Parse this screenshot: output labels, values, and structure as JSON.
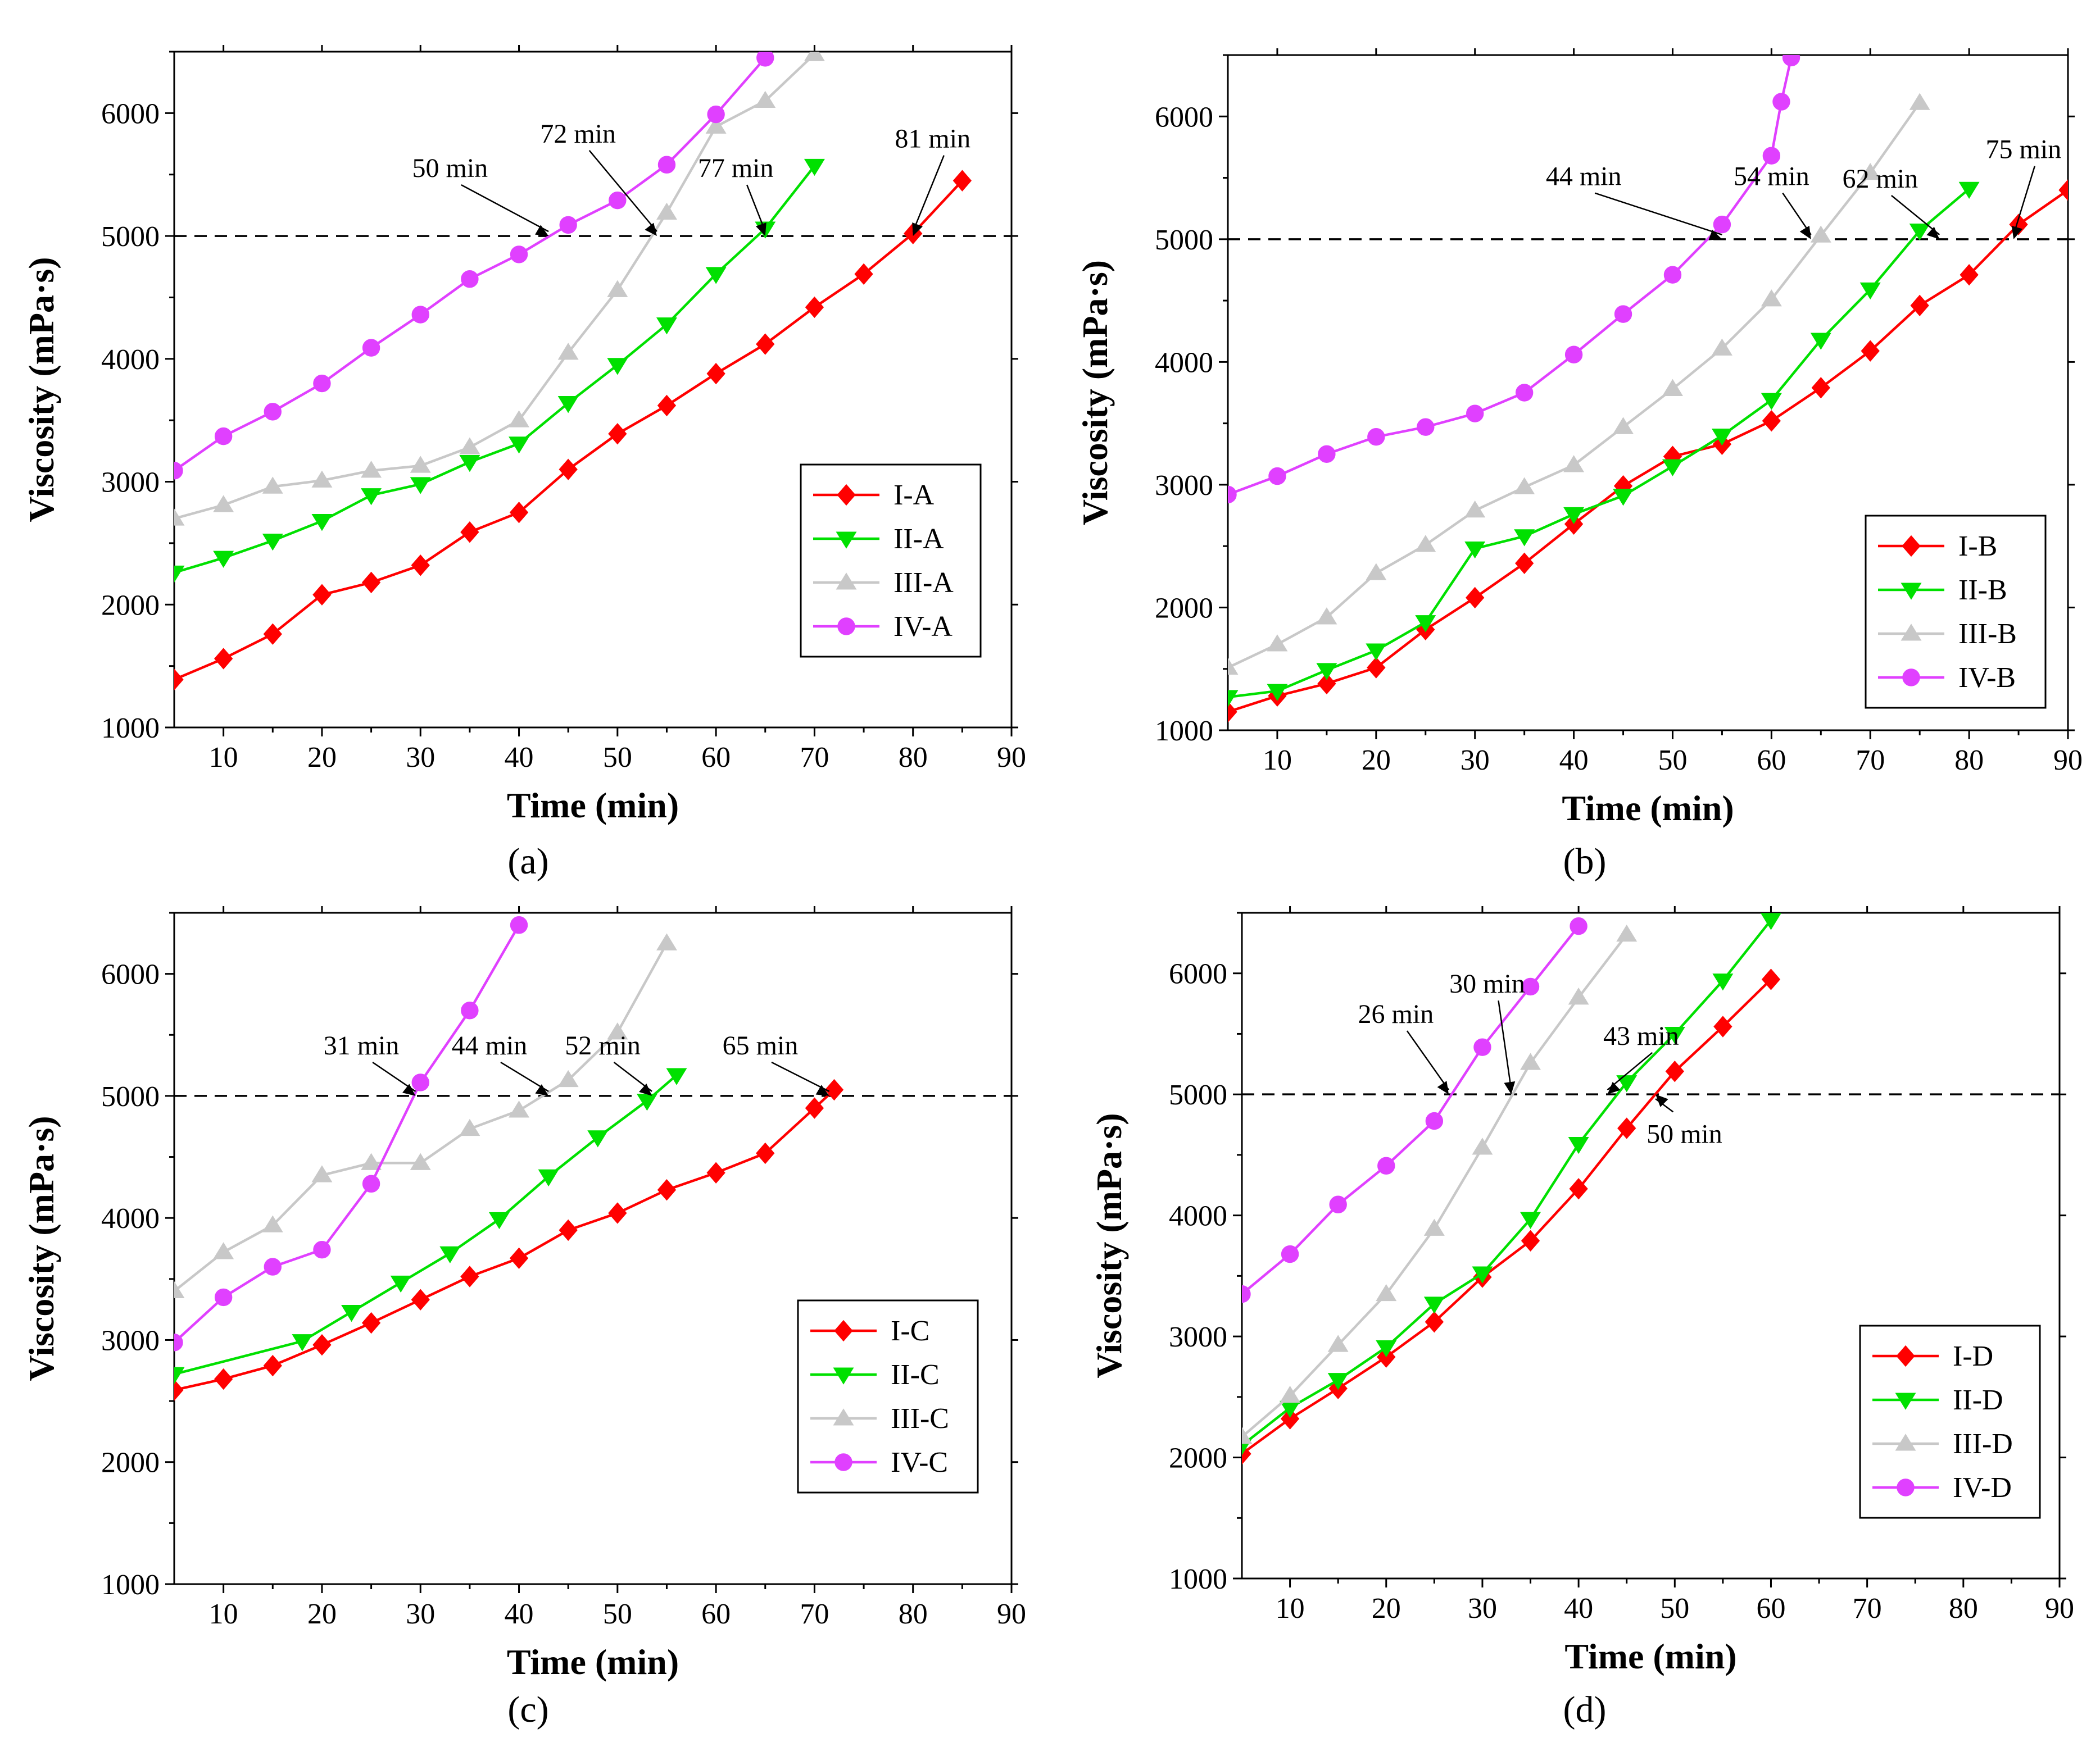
{
  "colors": {
    "I": "#ff0000",
    "II": "#00e000",
    "III": "#c8c8c8",
    "IV": "#e040ff"
  },
  "chart_data": [
    {
      "type": "line",
      "panel": "a",
      "caption": "(a)",
      "xlabel": "Time (min)",
      "ylabel": "Viscosity (mPa·s)",
      "xlim": [
        5,
        90
      ],
      "ylim": [
        1000,
        6500
      ],
      "xticks": [
        10,
        20,
        30,
        40,
        50,
        60,
        70,
        80,
        90
      ],
      "yticks": [
        1000,
        2000,
        3000,
        4000,
        5000,
        6000
      ],
      "threshold": 5000,
      "series": [
        {
          "name": "I-A",
          "group": "I",
          "marker": "diamond",
          "x": [
            5,
            10,
            15,
            20,
            25,
            30,
            35,
            40,
            45,
            50,
            55,
            60,
            65,
            70,
            75,
            80,
            85
          ],
          "y": [
            1390,
            1560,
            1760,
            2080,
            2180,
            2320,
            2590,
            2750,
            3100,
            3390,
            3620,
            3880,
            4120,
            4420,
            4690,
            5020,
            5450
          ]
        },
        {
          "name": "II-A",
          "group": "II",
          "marker": "triangle-down",
          "x": [
            5,
            10,
            15,
            20,
            25,
            30,
            35,
            40,
            45,
            50,
            55,
            60,
            65,
            70
          ],
          "y": [
            2260,
            2380,
            2520,
            2680,
            2890,
            2980,
            3160,
            3310,
            3640,
            3950,
            4280,
            4690,
            5060,
            5570
          ]
        },
        {
          "name": "III-A",
          "group": "III",
          "marker": "triangle-up",
          "x": [
            5,
            10,
            15,
            20,
            25,
            30,
            35,
            40,
            45,
            50,
            55,
            60,
            65,
            70
          ],
          "y": [
            2700,
            2810,
            2960,
            3010,
            3090,
            3130,
            3280,
            3500,
            4050,
            4560,
            5190,
            5890,
            6100,
            6480
          ]
        },
        {
          "name": "IV-A",
          "group": "IV",
          "marker": "circle",
          "x": [
            5,
            10,
            15,
            20,
            25,
            30,
            35,
            40,
            45,
            50,
            55,
            60,
            65
          ],
          "y": [
            3090,
            3370,
            3570,
            3800,
            4090,
            4360,
            4650,
            4850,
            5090,
            5290,
            5580,
            5990,
            6450
          ]
        }
      ],
      "annotations": [
        {
          "text": "50 min",
          "x": 43,
          "tx": 33,
          "ty": 5480
        },
        {
          "text": "72 min",
          "x": 54,
          "tx": 46,
          "ty": 5760
        },
        {
          "text": "77 min",
          "x": 65,
          "tx": 62,
          "ty": 5480
        },
        {
          "text": "81 min",
          "x": 80,
          "tx": 82,
          "ty": 5720
        }
      ],
      "legend": {
        "position": "center-right",
        "entries": [
          "I-A",
          "II-A",
          "III-A",
          "IV-A"
        ]
      }
    },
    {
      "type": "line",
      "panel": "b",
      "caption": "(b)",
      "xlabel": "Time (min)",
      "ylabel": "Viscosity (mPa·s)",
      "xlim": [
        5,
        90
      ],
      "ylim": [
        1000,
        6500
      ],
      "xticks": [
        10,
        20,
        30,
        40,
        50,
        60,
        70,
        80,
        90
      ],
      "yticks": [
        1000,
        2000,
        3000,
        4000,
        5000,
        6000
      ],
      "threshold": 5000,
      "series": [
        {
          "name": "I-B",
          "group": "I",
          "marker": "diamond",
          "x": [
            5,
            10,
            15,
            20,
            25,
            30,
            35,
            40,
            45,
            50,
            55,
            60,
            65,
            70,
            75,
            80,
            85,
            90
          ],
          "y": [
            1150,
            1280,
            1380,
            1510,
            1820,
            2080,
            2360,
            2680,
            2990,
            3230,
            3330,
            3520,
            3790,
            4090,
            4460,
            4710,
            5120,
            5400
          ]
        },
        {
          "name": "II-B",
          "group": "II",
          "marker": "triangle-down",
          "x": [
            5,
            10,
            15,
            20,
            25,
            30,
            35,
            40,
            45,
            50,
            55,
            60,
            65,
            70,
            75,
            80
          ],
          "y": [
            1270,
            1320,
            1490,
            1650,
            1880,
            2480,
            2580,
            2760,
            2910,
            3150,
            3400,
            3690,
            4180,
            4590,
            5070,
            5410
          ]
        },
        {
          "name": "III-B",
          "group": "III",
          "marker": "triangle-up",
          "x": [
            5,
            10,
            15,
            20,
            25,
            30,
            35,
            40,
            45,
            50,
            55,
            60,
            65,
            70,
            75
          ],
          "y": [
            1510,
            1700,
            1920,
            2280,
            2510,
            2790,
            2980,
            3160,
            3470,
            3780,
            4110,
            4510,
            5030,
            5540,
            6110
          ]
        },
        {
          "name": "IV-B",
          "group": "IV",
          "marker": "circle",
          "x": [
            5,
            10,
            15,
            20,
            25,
            30,
            35,
            40,
            45,
            50,
            55,
            60,
            61,
            62
          ],
          "y": [
            2920,
            3070,
            3250,
            3390,
            3470,
            3580,
            3750,
            4060,
            4390,
            4710,
            5120,
            5680,
            6120,
            6480
          ]
        }
      ],
      "annotations": [
        {
          "text": "44 min",
          "x": 55,
          "tx": 41,
          "ty": 5440
        },
        {
          "text": "54 min",
          "x": 64,
          "tx": 60,
          "ty": 5440
        },
        {
          "text": "62 min",
          "x": 77,
          "tx": 71,
          "ty": 5420
        },
        {
          "text": "75 min",
          "x": 84.5,
          "tx": 85.5,
          "ty": 5660
        }
      ],
      "legend": {
        "position": "bottom-right",
        "entries": [
          "I-B",
          "II-B",
          "III-B",
          "IV-B"
        ]
      }
    },
    {
      "type": "line",
      "panel": "c",
      "caption": "(c)",
      "xlabel": "Time (min)",
      "ylabel": "Viscosity (mPa·s)",
      "xlim": [
        5,
        90
      ],
      "ylim": [
        1000,
        6500
      ],
      "xticks": [
        10,
        20,
        30,
        40,
        50,
        60,
        70,
        80,
        90
      ],
      "yticks": [
        1000,
        2000,
        3000,
        4000,
        5000,
        6000
      ],
      "threshold": 5000,
      "series": [
        {
          "name": "I-C",
          "group": "I",
          "marker": "diamond",
          "x": [
            5,
            10,
            15,
            20,
            25,
            30,
            35,
            40,
            45,
            50,
            55,
            60,
            65,
            70,
            72
          ],
          "y": [
            2590,
            2680,
            2790,
            2960,
            3140,
            3330,
            3520,
            3670,
            3900,
            4040,
            4230,
            4370,
            4530,
            4900,
            5050
          ]
        },
        {
          "name": "II-C",
          "group": "II",
          "marker": "triangle-down",
          "x": [
            5,
            18,
            23,
            28,
            33,
            38,
            43,
            48,
            53,
            56
          ],
          "y": [
            2720,
            2990,
            3230,
            3470,
            3710,
            3990,
            4340,
            4660,
            4960,
            5170
          ]
        },
        {
          "name": "III-C",
          "group": "III",
          "marker": "triangle-up",
          "x": [
            5,
            10,
            15,
            20,
            25,
            30,
            35,
            40,
            45,
            50,
            55
          ],
          "y": [
            3400,
            3720,
            3940,
            4350,
            4450,
            4450,
            4730,
            4880,
            5130,
            5520,
            6250
          ]
        },
        {
          "name": "IV-C",
          "group": "IV",
          "marker": "circle",
          "x": [
            5,
            10,
            15,
            20,
            25,
            30,
            35,
            40
          ],
          "y": [
            2980,
            3350,
            3600,
            3740,
            4280,
            5110,
            5700,
            6400
          ]
        }
      ],
      "annotations": [
        {
          "text": "31 min",
          "x": 29.5,
          "tx": 24,
          "ty": 5340
        },
        {
          "text": "44 min",
          "x": 43,
          "tx": 37,
          "ty": 5340
        },
        {
          "text": "52 min",
          "x": 53.5,
          "tx": 48.5,
          "ty": 5340
        },
        {
          "text": "65 min",
          "x": 71.5,
          "tx": 64.5,
          "ty": 5340
        }
      ],
      "legend": {
        "position": "bottom-right",
        "entries": [
          "I-C",
          "II-C",
          "III-C",
          "IV-C"
        ]
      }
    },
    {
      "type": "line",
      "panel": "d",
      "caption": "(d)",
      "xlabel": "Time (min)",
      "ylabel": "Viscosity (mPa·s)",
      "xlim": [
        5,
        90
      ],
      "ylim": [
        1000,
        6500
      ],
      "xticks": [
        10,
        20,
        30,
        40,
        50,
        60,
        70,
        80,
        90
      ],
      "yticks": [
        1000,
        2000,
        3000,
        4000,
        5000,
        6000
      ],
      "threshold": 5000,
      "series": [
        {
          "name": "I-D",
          "group": "I",
          "marker": "diamond",
          "x": [
            5,
            10,
            15,
            20,
            25,
            30,
            35,
            40,
            45,
            50,
            55,
            60
          ],
          "y": [
            2030,
            2320,
            2570,
            2830,
            3120,
            3490,
            3790,
            4220,
            4720,
            5190,
            5560,
            5950
          ]
        },
        {
          "name": "II-D",
          "group": "II",
          "marker": "triangle-down",
          "x": [
            5,
            10,
            15,
            20,
            25,
            30,
            35,
            40,
            45,
            50,
            55,
            60
          ],
          "y": [
            2100,
            2410,
            2640,
            2910,
            3270,
            3520,
            3970,
            4590,
            5100,
            5500,
            5940,
            6440
          ]
        },
        {
          "name": "III-D",
          "group": "III",
          "marker": "triangle-up",
          "x": [
            5,
            10,
            15,
            20,
            25,
            30,
            35,
            40,
            45
          ],
          "y": [
            2170,
            2510,
            2930,
            3350,
            3890,
            4560,
            5260,
            5800,
            6320
          ]
        },
        {
          "name": "IV-D",
          "group": "IV",
          "marker": "circle",
          "x": [
            5,
            10,
            15,
            20,
            25,
            30,
            35,
            40
          ],
          "y": [
            3350,
            3680,
            4090,
            4410,
            4780,
            5390,
            5890,
            6390
          ]
        }
      ],
      "annotations": [
        {
          "text": "26 min",
          "x": 26.5,
          "tx": 21,
          "ty": 5590
        },
        {
          "text": "30 min",
          "x": 33,
          "tx": 30.5,
          "ty": 5840
        },
        {
          "text": "43 min",
          "x": 43,
          "tx": 46.5,
          "ty": 5410
        },
        {
          "text": "50 min",
          "x": 48,
          "tx": 51,
          "ty": 4600,
          "below": true
        }
      ],
      "legend": {
        "position": "bottom-right",
        "entries": [
          "I-D",
          "II-D",
          "III-D",
          "IV-D"
        ]
      }
    }
  ]
}
